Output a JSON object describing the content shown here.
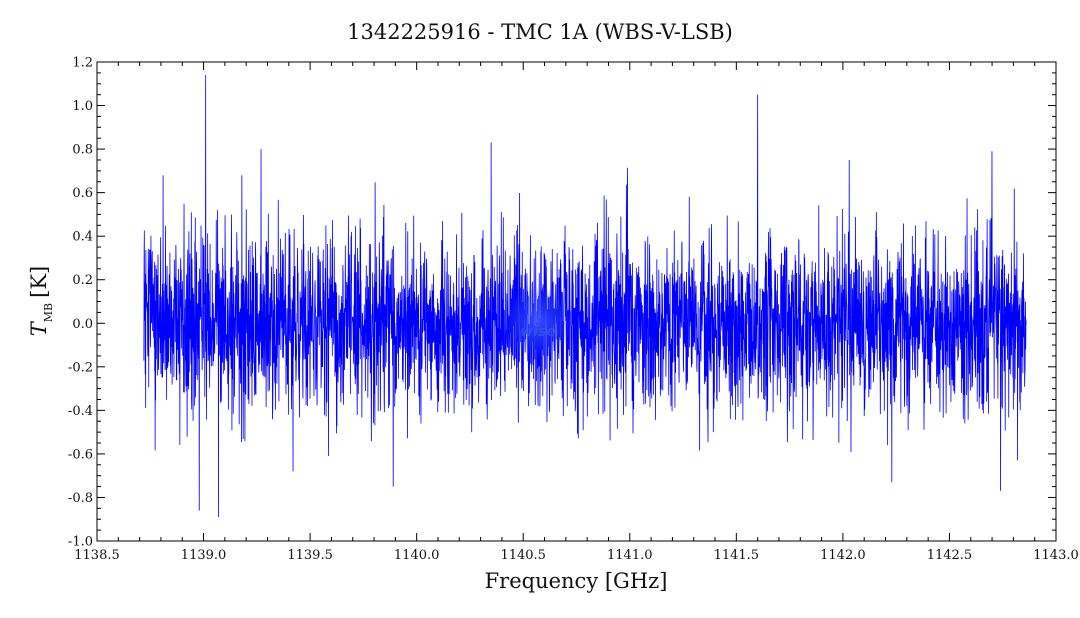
{
  "chart_data": {
    "type": "line",
    "title": "1342225916 - TMC 1A (WBS-V-LSB)",
    "xlabel": "Frequency [GHz]",
    "ylabel": {
      "symbol": "T",
      "subscript": "MB",
      "unit": "[K]"
    },
    "xlim": [
      1138.5,
      1143.0
    ],
    "ylim": [
      -1.0,
      1.2
    ],
    "x_ticks": [
      "1138.5",
      "1139.0",
      "1139.5",
      "1140.0",
      "1140.5",
      "1141.0",
      "1141.5",
      "1142.0",
      "1142.5",
      "1143.0"
    ],
    "y_ticks": [
      "-1.0",
      "-0.8",
      "-0.6",
      "-0.4",
      "-0.2",
      "0.0",
      "0.2",
      "0.4",
      "0.6",
      "0.8",
      "1.0",
      "1.2"
    ],
    "grid": false,
    "legend": "none",
    "color": "#0000ff",
    "watermark": "wise",
    "series": [
      {
        "x_range": [
          1138.72,
          1142.86
        ],
        "noise_rms_K": 0.2,
        "baseline_K": 0.0,
        "peaks": [
          {
            "x": 1139.01,
            "y": 1.14
          },
          {
            "x": 1141.6,
            "y": 1.05
          },
          {
            "x": 1140.35,
            "y": 0.83
          },
          {
            "x": 1139.27,
            "y": 0.8
          },
          {
            "x": 1142.7,
            "y": 0.79
          },
          {
            "x": 1142.03,
            "y": 0.75
          },
          {
            "x": 1138.81,
            "y": 0.68
          },
          {
            "x": 1139.18,
            "y": 0.68
          }
        ],
        "troughs": [
          {
            "x": 1139.07,
            "y": -0.89
          },
          {
            "x": 1138.98,
            "y": -0.86
          },
          {
            "x": 1139.89,
            "y": -0.75
          },
          {
            "x": 1142.23,
            "y": -0.73
          },
          {
            "x": 1142.74,
            "y": -0.77
          },
          {
            "x": 1139.42,
            "y": -0.68
          },
          {
            "x": 1142.82,
            "y": -0.63
          }
        ]
      }
    ]
  }
}
